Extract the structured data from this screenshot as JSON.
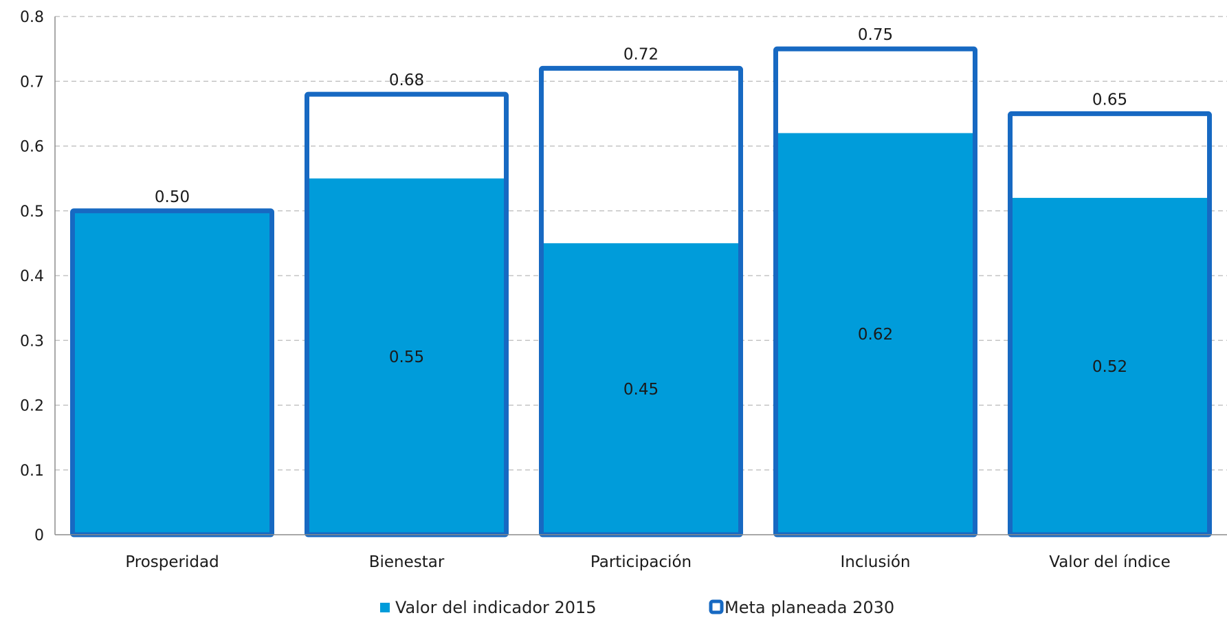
{
  "chart_data": {
    "type": "bar",
    "categories": [
      "Prosperidad",
      "Bienestar",
      "Participación",
      "Inclusión",
      "Valor del índice"
    ],
    "series": [
      {
        "name": "Valor del indicador 2015",
        "values": [
          0.5,
          0.55,
          0.45,
          0.62,
          0.52
        ],
        "color": "#009cda",
        "labels": [
          "",
          "0.55",
          "0.45",
          "0.62",
          "0.52"
        ]
      },
      {
        "name": "Meta planeada 2030",
        "values": [
          0.5,
          0.68,
          0.72,
          0.75,
          0.65
        ],
        "color": "#1769c2",
        "labels": [
          "0.50",
          "0.68",
          "0.72",
          "0.75",
          "0.65"
        ]
      }
    ],
    "yticks": [
      "0",
      "0.1",
      "0.2",
      "0.3",
      "0.4",
      "0.5",
      "0.6",
      "0.7",
      "0.8"
    ],
    "ylim": [
      0,
      0.8
    ],
    "grid": true,
    "legend_position": "bottom"
  }
}
